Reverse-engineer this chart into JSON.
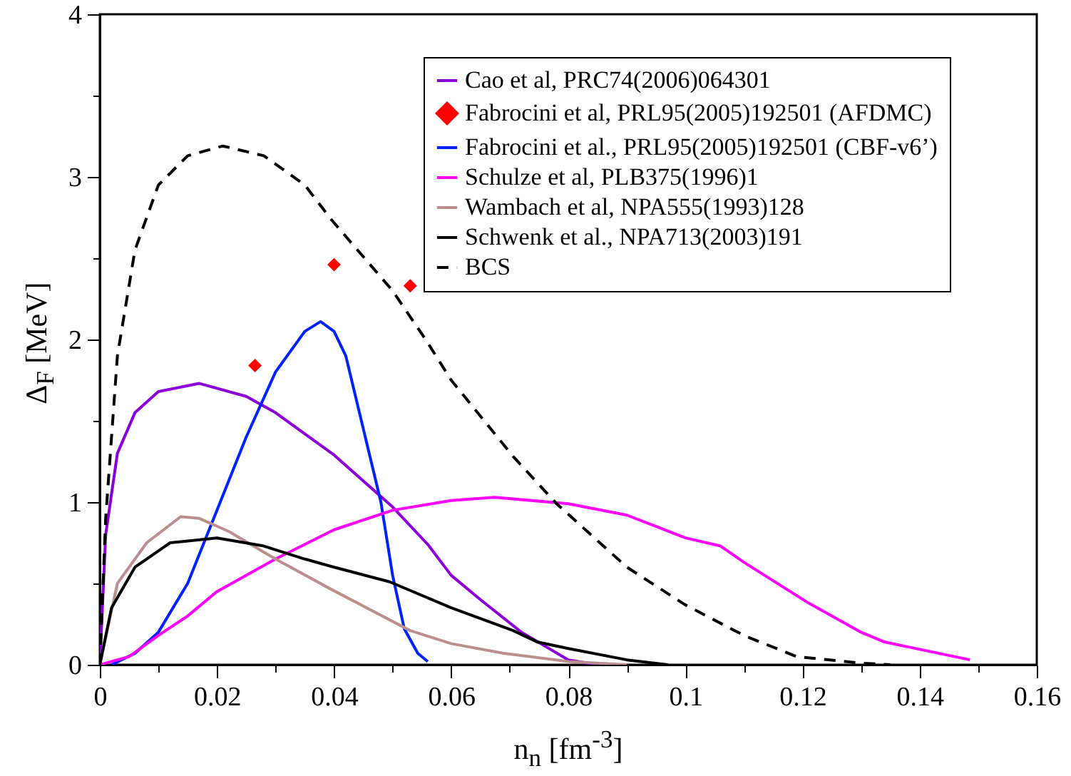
{
  "chart_data": {
    "type": "line",
    "xlabel": "n$_{n}$ [fm$^{-3}$]",
    "ylabel": "Δ$_{F}$ [MeV]",
    "xlim": [
      0,
      0.16
    ],
    "ylim": [
      0,
      4
    ],
    "xticks": [
      0,
      {
        "value": 0.01,
        "label": null
      },
      0.02,
      {
        "value": 0.03,
        "label": null
      },
      0.04,
      {
        "value": 0.05,
        "label": null
      },
      0.06,
      {
        "value": 0.07,
        "label": null
      },
      0.08,
      {
        "value": 0.09,
        "label": null
      },
      0.1,
      {
        "value": 0.11,
        "label": null
      },
      0.12,
      {
        "value": 0.13,
        "label": null
      },
      0.14,
      {
        "value": 0.15,
        "label": null
      },
      0.16
    ],
    "yticks": [
      0,
      {
        "value": 0.5,
        "label": null
      },
      1,
      {
        "value": 1.5,
        "label": null
      },
      2,
      {
        "value": 2.5,
        "label": null
      },
      3,
      {
        "value": 3.5,
        "label": null
      },
      4
    ],
    "grid": false,
    "legend": "top right",
    "series": [
      {
        "name": "Cao et al, PRC74(2006)064301",
        "type": "line",
        "color": "#8b00d8",
        "line_style": "solid",
        "x": [
          0,
          0.001,
          0.003,
          0.006,
          0.01,
          0.017,
          0.025,
          0.03,
          0.04,
          0.05,
          0.056,
          0.06,
          0.065,
          0.072,
          0.08,
          0.085
        ],
        "values": [
          0,
          0.8,
          1.3,
          1.55,
          1.68,
          1.73,
          1.65,
          1.55,
          1.29,
          0.97,
          0.74,
          0.55,
          0.4,
          0.2,
          0.03,
          0
        ]
      },
      {
        "name": "Fabrocini et al, PRL95(2005)192501 (AFDMC)",
        "type": "scatter",
        "color": "#ff0000",
        "marker": "diamond",
        "x": [
          0.0265,
          0.04,
          0.053
        ],
        "values": [
          1.84,
          2.46,
          2.33
        ]
      },
      {
        "name": "Fabrocini et al., PRL95(2005)192501 (CBF-v6’)",
        "type": "line",
        "color": "#0022ff",
        "line_style": "solid",
        "x": [
          0.002,
          0.006,
          0.01,
          0.015,
          0.02,
          0.025,
          0.03,
          0.035,
          0.0377,
          0.04,
          0.042,
          0.045,
          0.048,
          0.05,
          0.052,
          0.0543,
          0.056
        ],
        "values": [
          0,
          0.07,
          0.2,
          0.5,
          0.95,
          1.4,
          1.8,
          2.05,
          2.11,
          2.05,
          1.9,
          1.45,
          1.0,
          0.55,
          0.22,
          0.07,
          0.02
        ]
      },
      {
        "name": "Schulze et al, PLB375(1996)1",
        "type": "line",
        "color": "#ff00ff",
        "line_style": "solid",
        "x": [
          0,
          0.005,
          0.01,
          0.015,
          0.02,
          0.03,
          0.04,
          0.05,
          0.06,
          0.0674,
          0.08,
          0.09,
          0.095,
          0.1,
          0.106,
          0.11,
          0.121,
          0.13,
          0.134,
          0.1486
        ],
        "values": [
          0,
          0.05,
          0.18,
          0.3,
          0.45,
          0.65,
          0.83,
          0.95,
          1.01,
          1.03,
          0.99,
          0.92,
          0.85,
          0.78,
          0.73,
          0.63,
          0.38,
          0.2,
          0.14,
          0.03
        ]
      },
      {
        "name": "Wambach et al, NPA555(1993)128",
        "type": "line",
        "color": "#bc8f8f",
        "line_style": "solid",
        "x": [
          0,
          0.003,
          0.008,
          0.0138,
          0.017,
          0.022,
          0.03,
          0.0397,
          0.053,
          0.06,
          0.069,
          0.08,
          0.09
        ],
        "values": [
          0,
          0.5,
          0.75,
          0.91,
          0.9,
          0.82,
          0.65,
          0.46,
          0.21,
          0.13,
          0.07,
          0.02,
          0
        ]
      },
      {
        "name": "Schwenk et al., NPA713(2003)191",
        "type": "line",
        "color": "#000000",
        "line_style": "solid",
        "x": [
          0,
          0.002,
          0.006,
          0.012,
          0.02,
          0.028,
          0.035,
          0.04,
          0.0495,
          0.06,
          0.0706,
          0.0747,
          0.08,
          0.09,
          0.097
        ],
        "values": [
          0,
          0.35,
          0.6,
          0.75,
          0.78,
          0.73,
          0.65,
          0.6,
          0.51,
          0.35,
          0.21,
          0.14,
          0.1,
          0.03,
          0
        ]
      },
      {
        "name": "BCS",
        "type": "line",
        "color": "#000000",
        "line_style": "dashed",
        "x": [
          0,
          0.001,
          0.003,
          0.006,
          0.01,
          0.015,
          0.021,
          0.028,
          0.035,
          0.0397,
          0.05,
          0.056,
          0.06,
          0.0706,
          0.078,
          0.09,
          0.0999,
          0.11,
          0.119,
          0.13,
          0.135
        ],
        "values": [
          0,
          0.9,
          1.9,
          2.55,
          2.95,
          3.13,
          3.19,
          3.13,
          2.95,
          2.73,
          2.3,
          1.98,
          1.75,
          1.28,
          0.99,
          0.6,
          0.37,
          0.18,
          0.05,
          0.01,
          0
        ]
      }
    ]
  }
}
